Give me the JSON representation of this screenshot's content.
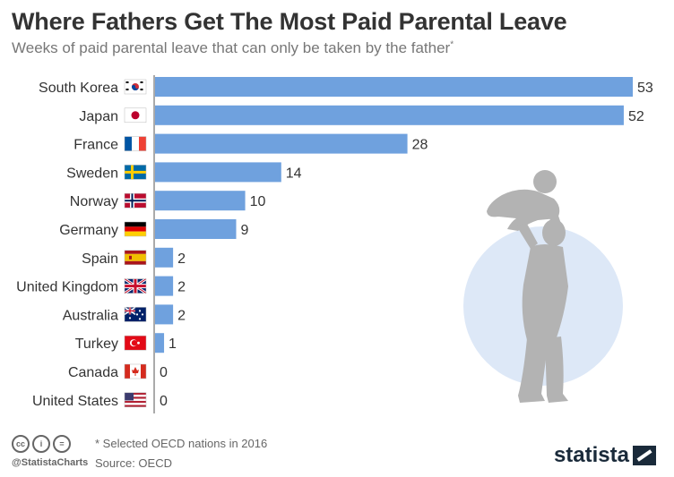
{
  "title": "Where Fathers Get The Most Paid Parental Leave",
  "subtitle": "Weeks of paid parental leave that can only be taken by the father",
  "subtitle_marker": "*",
  "chart_data": {
    "type": "bar",
    "orientation": "horizontal",
    "categories": [
      "South Korea",
      "Japan",
      "France",
      "Sweden",
      "Norway",
      "Germany",
      "Spain",
      "United Kingdom",
      "Australia",
      "Turkey",
      "Canada",
      "United States"
    ],
    "values": [
      53,
      52,
      28,
      14,
      10,
      9,
      2,
      2,
      2,
      1,
      0,
      0
    ],
    "xlim": [
      0,
      53
    ],
    "bar_color": "#6fa1de",
    "grid": false
  },
  "flag_icons": [
    "south-korea-flag-icon",
    "japan-flag-icon",
    "france-flag-icon",
    "sweden-flag-icon",
    "norway-flag-icon",
    "germany-flag-icon",
    "spain-flag-icon",
    "united-kingdom-flag-icon",
    "australia-flag-icon",
    "turkey-flag-icon",
    "canada-flag-icon",
    "united-states-flag-icon"
  ],
  "illustration": {
    "icon": "father-lifting-child-silhouette-icon",
    "circle_color": "#dde8f7",
    "figure_color": "#b3b3b3"
  },
  "footer": {
    "note": "* Selected OECD nations in 2016",
    "source": "Source: OECD",
    "handle": "@StatistaCharts",
    "brand": "statista",
    "license_icons": [
      "cc-icon",
      "by-icon",
      "nd-icon"
    ]
  }
}
